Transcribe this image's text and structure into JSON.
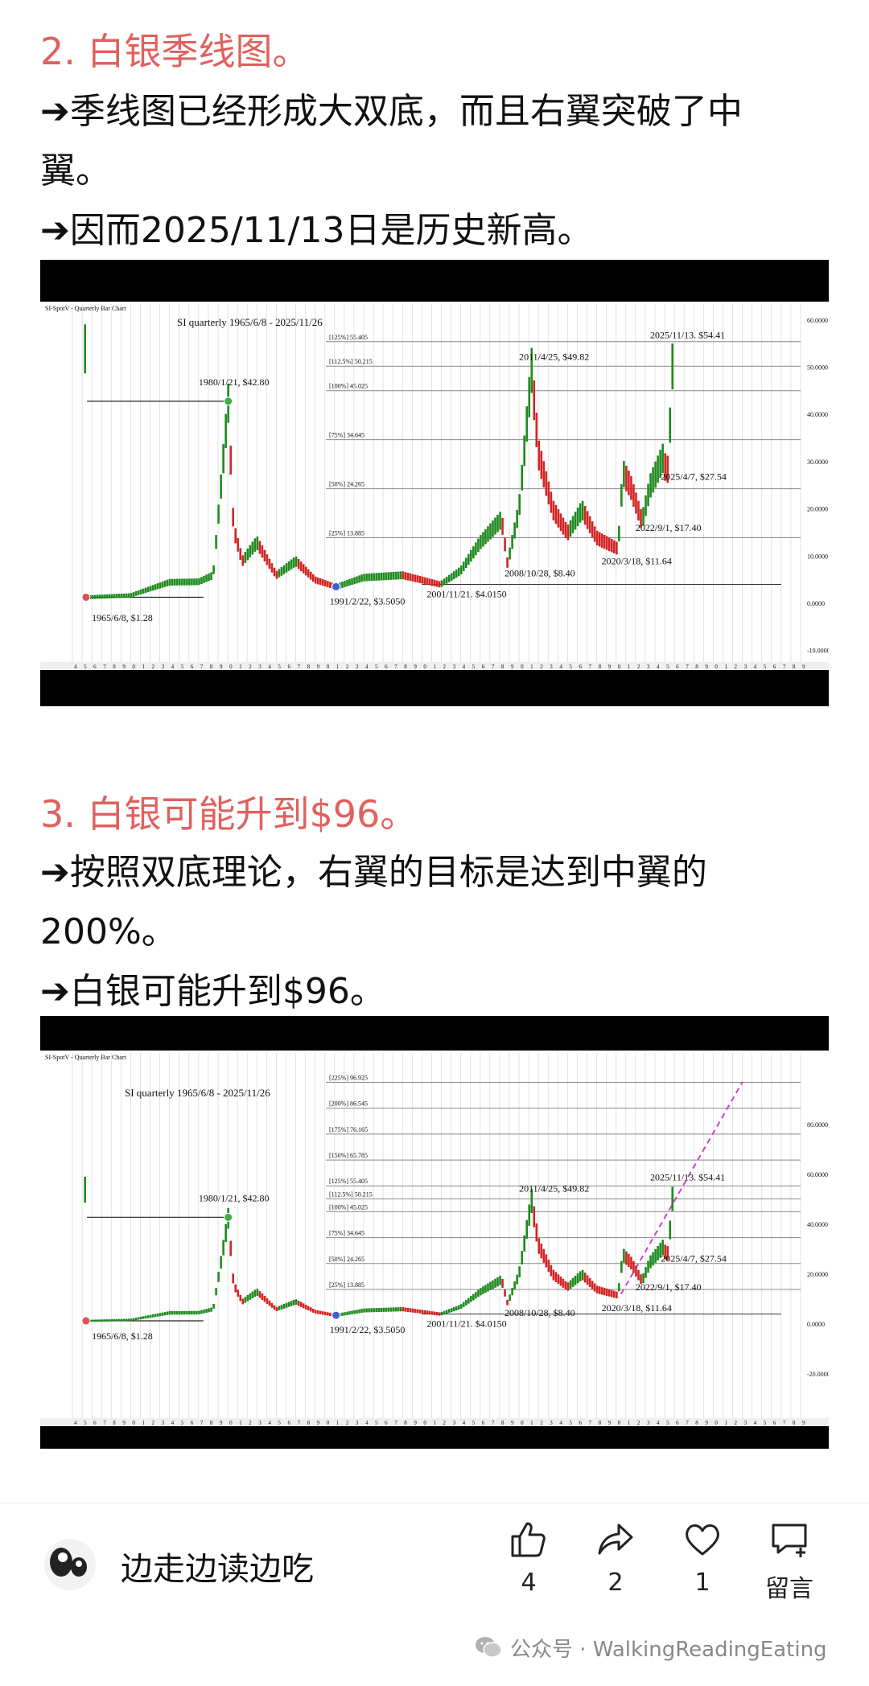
{
  "section2": {
    "heading": "2. 白银季线图。",
    "lines": [
      "➔季线图已经形成大双底，而且右翼突破了中",
      "翼。",
      "➔因而2025/11/13日是历史新高。"
    ]
  },
  "section3": {
    "heading": "3. 白银可能升到$96。",
    "lines": [
      "➔按照双底理论，右翼的目标是达到中翼的",
      "200%。",
      "➔白银可能升到$96。"
    ]
  },
  "chart1": {
    "header": "SI-SpotV - Quarterly Bar Chart",
    "title": "SI quarterly 1965/6/8 - 2025/11/26",
    "fib_labels": [
      "[125%] 55.405",
      "[112.5%] 50.215",
      "[100%] 45.025",
      "[75%] 34.645",
      "[50%] 24.265",
      "[25%] 13.885"
    ],
    "y_ticks": [
      "60.0000",
      "50.0000",
      "40.0000",
      "30.0000",
      "20.0000",
      "10.0000",
      "0.0000",
      "-10.0000"
    ],
    "annotations": [
      "1965/6/8, $1.28",
      "1980/1/21, $42.80",
      "1991/2/22, $3.5050",
      "2001/11/21. $4.0150",
      "2008/10/28, $8.40",
      "2011/4/25, $49.82",
      "2020/3/18, $11.64",
      "2022/9/1, $17.40",
      "2025/4/7, $27.54",
      "2025/11/13. $54.41"
    ]
  },
  "chart2": {
    "header": "SI-SpotV - Quarterly Bar Chart",
    "title": "SI quarterly 1965/6/8 - 2025/11/26",
    "fib_labels": [
      "[225%] 96.925",
      "[200%] 86.545",
      "[175%] 76.165",
      "[150%] 65.785",
      "[125%] 55.405",
      "[112.5%] 50.215",
      "[100%] 45.025",
      "[75%] 34.645",
      "[50%] 24.265",
      "[25%] 13.885"
    ],
    "y_ticks": [
      "80.0000",
      "60.0000",
      "40.0000",
      "20.0000",
      "0.0000",
      "-20.0000"
    ],
    "annotations": [
      "1965/6/8, $1.28",
      "1980/1/21, $42.80",
      "1991/2/22, $3.5050",
      "2001/11/21. $4.0150",
      "2008/10/28, $8.40",
      "2011/4/25, $49.82",
      "2020/3/18, $11.64",
      "2022/9/1, $17.40",
      "2025/4/7, $27.54",
      "2025/11/13. $54.41"
    ]
  },
  "footer": {
    "author": "边走边读边吃",
    "likes": "4",
    "shares": "2",
    "favorites": "1",
    "comment_label": "留言",
    "watermark": "公众号 · WalkingReadingEating",
    "icons": {
      "like": "thumbs-up-icon",
      "share": "share-icon",
      "favorite": "heart-icon",
      "comment": "comment-add-icon"
    }
  }
}
